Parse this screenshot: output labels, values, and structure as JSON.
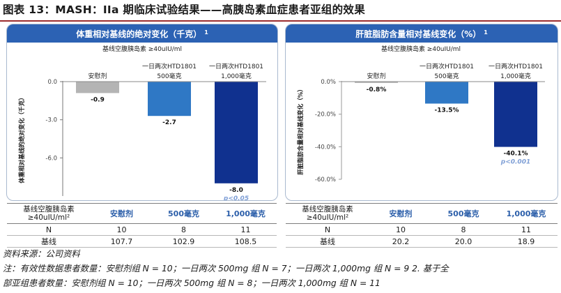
{
  "page_title": "图表 13：MASH：IIa 期临床试验结果——高胰岛素血症患者亚组的效果",
  "chart_data": [
    {
      "type": "bar",
      "title": "体重相对基线的绝对变化（千克）",
      "title_sup": "1",
      "subtitle": "基线空腹胰岛素 ≥40uIU/ml",
      "ylabel": "体重相对基线的绝对变化（千克）",
      "ylim": [
        -9.0,
        0.0
      ],
      "yticks": [
        "0.0",
        "-3.0",
        "-6.0"
      ],
      "ytick_values": [
        0.0,
        -3.0,
        -6.0
      ],
      "categories": [
        "安慰剂",
        "一日两次HTD1801 500毫克",
        "一日两次HTD1801 1,000毫克"
      ],
      "category_lines": [
        [
          "安慰剂"
        ],
        [
          "一日两次HTD1801",
          "500毫克"
        ],
        [
          "一日两次HTD1801",
          "1,000毫克"
        ]
      ],
      "values": [
        -0.9,
        -2.7,
        -8.0
      ],
      "value_labels": [
        "-0.9",
        "-2.7",
        "-8.0"
      ],
      "pvalues": [
        "",
        "",
        "p<0.05"
      ],
      "colors": [
        "#b4b4b4",
        "#2f78c5",
        "#10318f"
      ]
    },
    {
      "type": "bar",
      "title": "肝脏脂肪含量相对基线变化（%）",
      "title_sup": "1",
      "subtitle": "基线空腹胰岛素 ≥40uIU/ml",
      "ylabel": "肝脏脂肪含量相对基线变化（%）",
      "ylim": [
        -60.0,
        0.0
      ],
      "yticks": [
        "0.0%",
        "-20.0%",
        "-40.0%",
        "-60.0%"
      ],
      "ytick_values": [
        0.0,
        -20.0,
        -40.0,
        -60.0
      ],
      "categories": [
        "安慰剂",
        "一日两次HTD1801 500毫克",
        "一日两次HTD1801 1,000毫克"
      ],
      "category_lines": [
        [
          "安慰剂"
        ],
        [
          "一日两次HTD1801",
          "500毫克"
        ],
        [
          "一日两次HTD1801",
          "1,000毫克"
        ]
      ],
      "values": [
        -0.8,
        -13.5,
        -40.1
      ],
      "value_labels": [
        "-0.8%",
        "-13.5%",
        "-40.1%"
      ],
      "pvalues": [
        "",
        "",
        "p<0.001"
      ],
      "colors": [
        "#b4b4b4",
        "#2f78c5",
        "#10318f"
      ]
    }
  ],
  "tables": [
    {
      "header": [
        "基线空腹胰岛素≥40uIU/ml²",
        "安慰剂",
        "500毫克",
        "1,000毫克"
      ],
      "rows": [
        [
          "N",
          "10",
          "8",
          "11"
        ],
        [
          "基线",
          "107.7",
          "102.9",
          "108.5"
        ]
      ]
    },
    {
      "header": [
        "基线空腹胰岛素≥40uIU/ml²",
        "安慰剂",
        "500毫克",
        "1,000毫克"
      ],
      "rows": [
        [
          "N",
          "10",
          "8",
          "11"
        ],
        [
          "基线",
          "20.2",
          "20.0",
          "18.9"
        ]
      ]
    }
  ],
  "notes": [
    "资料来源：公司资料",
    "注：有效性数据患者数量：安慰剂组 N = 10；一日两次 500mg 组 N = 7；一日两次 1,000mg 组 N = 9 2. 基于全",
    "部亚组患者数量：安慰剂组 N = 10；一日两次 500mg 组 N = 8；一日两次 1,000mg 组 N = 11"
  ],
  "colors": {
    "header_blue": "#2c62b4",
    "pvalue": "#7f9fd6",
    "table_header": "#2c5faa"
  }
}
